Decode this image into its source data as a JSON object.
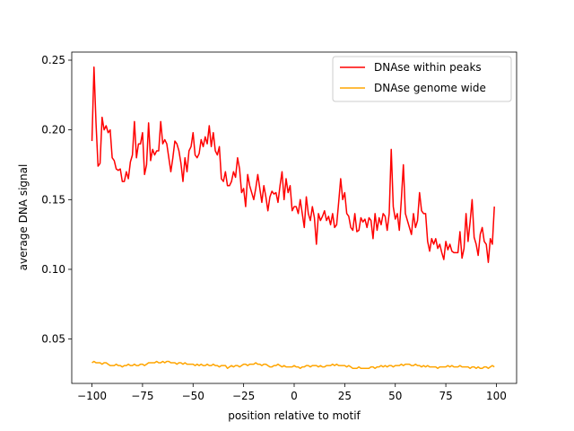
{
  "chart_data": {
    "type": "line",
    "xlabel": "position relative to motif",
    "ylabel": "average DNA signal",
    "xlim": [
      -110,
      110
    ],
    "ylim": [
      0.0182,
      0.2558
    ],
    "xticks": [
      {
        "value": -100,
        "label": "−100"
      },
      {
        "value": -75,
        "label": "−75"
      },
      {
        "value": -50,
        "label": "−50"
      },
      {
        "value": -25,
        "label": "−25"
      },
      0,
      25,
      50,
      75,
      100
    ],
    "yticks": [
      0.05,
      {
        "value": 0.1,
        "label": "0.10"
      },
      0.15,
      {
        "value": 0.2,
        "label": "0.20"
      },
      0.25
    ],
    "legend": "upper right",
    "x": [
      -100,
      -99,
      -98,
      -97,
      -96,
      -95,
      -94,
      -93,
      -92,
      -91,
      -90,
      -89,
      -88,
      -87,
      -86,
      -85,
      -84,
      -83,
      -82,
      -81,
      -80,
      -79,
      -78,
      -77,
      -76,
      -75,
      -74,
      -73,
      -72,
      -71,
      -70,
      -69,
      -68,
      -67,
      -66,
      -65,
      -64,
      -63,
      -62,
      -61,
      -60,
      -59,
      -58,
      -57,
      -56,
      -55,
      -54,
      -53,
      -52,
      -51,
      -50,
      -49,
      -48,
      -47,
      -46,
      -45,
      -44,
      -43,
      -42,
      -41,
      -40,
      -39,
      -38,
      -37,
      -36,
      -35,
      -34,
      -33,
      -32,
      -31,
      -30,
      -29,
      -28,
      -27,
      -26,
      -25,
      -24,
      -23,
      -22,
      -21,
      -20,
      -19,
      -18,
      -17,
      -16,
      -15,
      -14,
      -13,
      -12,
      -11,
      -10,
      -9,
      -8,
      -7,
      -6,
      -5,
      -4,
      -3,
      -2,
      -1,
      0,
      1,
      2,
      3,
      4,
      5,
      6,
      7,
      8,
      9,
      10,
      11,
      12,
      13,
      14,
      15,
      16,
      17,
      18,
      19,
      20,
      21,
      22,
      23,
      24,
      25,
      26,
      27,
      28,
      29,
      30,
      31,
      32,
      33,
      34,
      35,
      36,
      37,
      38,
      39,
      40,
      41,
      42,
      43,
      44,
      45,
      46,
      47,
      48,
      49,
      50,
      51,
      52,
      53,
      54,
      55,
      56,
      57,
      58,
      59,
      60,
      61,
      62,
      63,
      64,
      65,
      66,
      67,
      68,
      69,
      70,
      71,
      72,
      73,
      74,
      75,
      76,
      77,
      78,
      79,
      80,
      81,
      82,
      83,
      84,
      85,
      86,
      87,
      88,
      89,
      90,
      91,
      92,
      93,
      94,
      95,
      96,
      97,
      98,
      99
    ],
    "series": [
      {
        "name": "DNAse within peaks",
        "color": "#ff0000",
        "values": [
          0.192,
          0.245,
          0.205,
          0.174,
          0.176,
          0.209,
          0.2,
          0.203,
          0.198,
          0.2,
          0.18,
          0.178,
          0.172,
          0.171,
          0.172,
          0.163,
          0.163,
          0.17,
          0.165,
          0.177,
          0.182,
          0.206,
          0.18,
          0.19,
          0.19,
          0.198,
          0.168,
          0.175,
          0.205,
          0.178,
          0.186,
          0.182,
          0.185,
          0.185,
          0.206,
          0.19,
          0.193,
          0.19,
          0.18,
          0.17,
          0.18,
          0.192,
          0.19,
          0.185,
          0.176,
          0.163,
          0.18,
          0.17,
          0.185,
          0.188,
          0.198,
          0.182,
          0.18,
          0.183,
          0.193,
          0.188,
          0.195,
          0.19,
          0.203,
          0.188,
          0.198,
          0.185,
          0.182,
          0.188,
          0.165,
          0.163,
          0.17,
          0.16,
          0.16,
          0.163,
          0.17,
          0.166,
          0.18,
          0.172,
          0.155,
          0.158,
          0.145,
          0.168,
          0.16,
          0.155,
          0.15,
          0.158,
          0.168,
          0.158,
          0.148,
          0.16,
          0.152,
          0.142,
          0.152,
          0.156,
          0.154,
          0.155,
          0.148,
          0.16,
          0.17,
          0.15,
          0.165,
          0.155,
          0.16,
          0.142,
          0.145,
          0.145,
          0.14,
          0.15,
          0.14,
          0.13,
          0.152,
          0.14,
          0.135,
          0.145,
          0.137,
          0.118,
          0.14,
          0.135,
          0.138,
          0.142,
          0.135,
          0.138,
          0.132,
          0.14,
          0.13,
          0.132,
          0.148,
          0.165,
          0.15,
          0.155,
          0.14,
          0.138,
          0.13,
          0.128,
          0.14,
          0.127,
          0.128,
          0.137,
          0.134,
          0.136,
          0.13,
          0.137,
          0.135,
          0.122,
          0.14,
          0.128,
          0.137,
          0.132,
          0.14,
          0.138,
          0.128,
          0.14,
          0.186,
          0.145,
          0.136,
          0.14,
          0.128,
          0.15,
          0.175,
          0.14,
          0.135,
          0.13,
          0.125,
          0.14,
          0.13,
          0.135,
          0.155,
          0.142,
          0.14,
          0.14,
          0.12,
          0.113,
          0.122,
          0.118,
          0.122,
          0.115,
          0.118,
          0.112,
          0.107,
          0.12,
          0.114,
          0.118,
          0.113,
          0.112,
          0.112,
          0.112,
          0.127,
          0.108,
          0.115,
          0.14,
          0.12,
          0.134,
          0.15,
          0.123,
          0.118,
          0.11,
          0.125,
          0.13,
          0.12,
          0.118,
          0.105,
          0.122,
          0.118,
          0.145
        ]
      },
      {
        "name": "DNAse genome wide",
        "color": "#ffa500",
        "values": [
          0.033,
          0.034,
          0.033,
          0.033,
          0.033,
          0.032,
          0.033,
          0.033,
          0.032,
          0.031,
          0.031,
          0.031,
          0.032,
          0.031,
          0.031,
          0.03,
          0.031,
          0.031,
          0.032,
          0.031,
          0.031,
          0.032,
          0.031,
          0.031,
          0.032,
          0.032,
          0.031,
          0.032,
          0.033,
          0.033,
          0.033,
          0.033,
          0.034,
          0.033,
          0.033,
          0.034,
          0.033,
          0.034,
          0.034,
          0.033,
          0.033,
          0.033,
          0.032,
          0.033,
          0.033,
          0.032,
          0.033,
          0.032,
          0.032,
          0.032,
          0.032,
          0.031,
          0.032,
          0.031,
          0.032,
          0.031,
          0.031,
          0.032,
          0.031,
          0.031,
          0.032,
          0.031,
          0.031,
          0.03,
          0.031,
          0.031,
          0.031,
          0.029,
          0.03,
          0.031,
          0.03,
          0.031,
          0.031,
          0.03,
          0.031,
          0.032,
          0.032,
          0.031,
          0.032,
          0.032,
          0.032,
          0.033,
          0.032,
          0.032,
          0.031,
          0.032,
          0.032,
          0.031,
          0.03,
          0.03,
          0.031,
          0.031,
          0.032,
          0.031,
          0.03,
          0.031,
          0.03,
          0.03,
          0.03,
          0.03,
          0.031,
          0.03,
          0.03,
          0.029,
          0.03,
          0.03,
          0.031,
          0.031,
          0.03,
          0.031,
          0.031,
          0.031,
          0.03,
          0.031,
          0.03,
          0.03,
          0.031,
          0.031,
          0.031,
          0.032,
          0.031,
          0.032,
          0.031,
          0.031,
          0.031,
          0.031,
          0.03,
          0.031,
          0.03,
          0.029,
          0.029,
          0.029,
          0.03,
          0.029,
          0.029,
          0.029,
          0.029,
          0.029,
          0.03,
          0.03,
          0.029,
          0.03,
          0.03,
          0.031,
          0.03,
          0.031,
          0.03,
          0.031,
          0.031,
          0.03,
          0.031,
          0.031,
          0.031,
          0.032,
          0.031,
          0.032,
          0.032,
          0.032,
          0.031,
          0.031,
          0.032,
          0.031,
          0.031,
          0.03,
          0.031,
          0.03,
          0.031,
          0.03,
          0.03,
          0.03,
          0.03,
          0.029,
          0.03,
          0.03,
          0.03,
          0.03,
          0.031,
          0.03,
          0.031,
          0.03,
          0.03,
          0.03,
          0.031,
          0.03,
          0.03,
          0.03,
          0.03,
          0.029,
          0.03,
          0.03,
          0.029,
          0.03,
          0.029,
          0.029,
          0.03,
          0.03,
          0.029,
          0.03,
          0.031,
          0.03
        ]
      }
    ]
  }
}
